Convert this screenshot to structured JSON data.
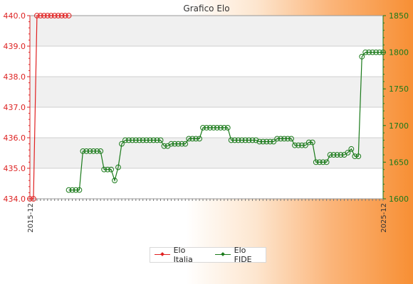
{
  "chart_data": {
    "type": "line",
    "title": "Grafico Elo",
    "xlabel": "",
    "y_left": {
      "min": 434,
      "max": 440,
      "ticks": [
        "434.0",
        "435.0",
        "436.0",
        "437.0",
        "438.0",
        "439.0",
        "440.0"
      ]
    },
    "y_right": {
      "min": 1600,
      "max": 1850,
      "ticks": [
        "1600",
        "1650",
        "1700",
        "1750",
        "1800",
        "1850"
      ]
    },
    "x_range": [
      0,
      100
    ],
    "x_labels": [
      "2015-12",
      "2025-12"
    ],
    "series": [
      {
        "name": "Elo Italia",
        "axis": "left",
        "color": "#e02020",
        "marker": "circle",
        "x": [
          0,
          1,
          2,
          3,
          4,
          5,
          6,
          7,
          8,
          9,
          10,
          11
        ],
        "y": [
          434,
          434,
          440,
          440,
          440,
          440,
          440,
          440,
          440,
          440,
          440,
          440
        ]
      },
      {
        "name": "Elo FIDE",
        "axis": "right",
        "color": "#1a7a1a",
        "marker": "circle",
        "x": [
          11,
          12,
          13,
          14,
          15,
          16,
          17,
          18,
          19,
          20,
          21,
          22,
          23,
          24,
          25,
          26,
          27,
          28,
          29,
          30,
          31,
          32,
          33,
          34,
          35,
          36,
          37,
          38,
          39,
          40,
          41,
          42,
          43,
          44,
          45,
          46,
          47,
          48,
          49,
          50,
          51,
          52,
          53,
          54,
          55,
          56,
          57,
          58,
          59,
          60,
          61,
          62,
          63,
          64,
          65,
          66,
          67,
          68,
          69,
          70,
          71,
          72,
          73,
          74,
          75,
          76,
          77,
          78,
          79,
          80,
          81,
          82,
          83,
          84,
          85,
          86,
          87,
          88,
          89,
          90,
          91,
          92,
          93,
          94,
          95,
          96,
          97,
          98,
          99,
          100
        ],
        "y": [
          1612,
          1612,
          1612,
          1612,
          1665,
          1665,
          1665,
          1665,
          1665,
          1665,
          1640,
          1640,
          1640,
          1625,
          1643,
          1675,
          1680,
          1680,
          1680,
          1680,
          1680,
          1680,
          1680,
          1680,
          1680,
          1680,
          1680,
          1672,
          1672,
          1675,
          1675,
          1675,
          1675,
          1675,
          1682,
          1682,
          1682,
          1682,
          1697,
          1697,
          1697,
          1697,
          1697,
          1697,
          1697,
          1697,
          1680,
          1680,
          1680,
          1680,
          1680,
          1680,
          1680,
          1680,
          1678,
          1678,
          1678,
          1678,
          1678,
          1682,
          1682,
          1682,
          1682,
          1682,
          1673,
          1673,
          1673,
          1673,
          1677,
          1677,
          1650,
          1650,
          1650,
          1650,
          1660,
          1660,
          1660,
          1660,
          1660,
          1663,
          1668,
          1658,
          1658,
          1794,
          1800,
          1800,
          1800,
          1800,
          1800,
          1800
        ]
      }
    ],
    "legend": {
      "position": "bottom"
    },
    "grid": true
  }
}
